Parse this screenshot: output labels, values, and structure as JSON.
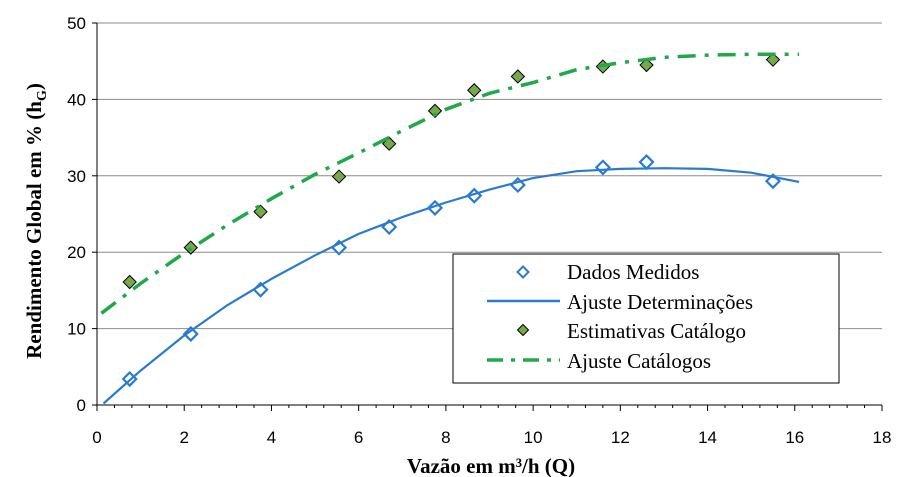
{
  "chart_data": {
    "type": "scatter",
    "xlabel": "Vazão em m³/h (Q)",
    "ylabel_main": "Rendimento Global em % (h",
    "ylabel_sub": "G",
    "ylabel_close": ")",
    "xlim": [
      0,
      18
    ],
    "ylim": [
      0,
      50
    ],
    "x_ticks": [
      0,
      2,
      4,
      6,
      8,
      10,
      12,
      14,
      16,
      18
    ],
    "y_ticks": [
      0,
      10,
      20,
      30,
      40,
      50
    ],
    "grid": "horizontal",
    "legend_position": "bottom-right",
    "series": [
      {
        "name": "Dados Medidos",
        "kind": "markers",
        "marker": "diamond-open",
        "color": "#2a7bd0",
        "x": [
          0.75,
          2.15,
          3.75,
          5.55,
          6.7,
          7.75,
          8.65,
          9.65,
          11.6,
          12.6,
          15.5
        ],
        "y": [
          3.4,
          9.3,
          15.1,
          20.6,
          23.3,
          25.8,
          27.4,
          28.8,
          31.1,
          31.8,
          29.3
        ]
      },
      {
        "name": "Ajuste Determinações",
        "kind": "line",
        "style": "solid",
        "color": "#2a7bd0",
        "x": [
          0.15,
          1,
          2,
          3,
          4,
          5,
          6,
          7,
          8,
          9,
          10,
          11,
          12,
          13,
          14,
          15,
          16.1
        ],
        "y": [
          0.2,
          4.5,
          9.1,
          13.1,
          16.5,
          19.6,
          22.4,
          24.6,
          26.5,
          28.2,
          29.7,
          30.6,
          30.9,
          31.0,
          30.9,
          30.4,
          29.2
        ]
      },
      {
        "name": "Estimativas Catálogo",
        "kind": "markers",
        "marker": "diamond-filled",
        "color": "#77a94a",
        "x": [
          0.75,
          2.15,
          3.75,
          5.55,
          6.7,
          7.75,
          8.65,
          9.65,
          11.6,
          12.6,
          15.5
        ],
        "y": [
          16.1,
          20.6,
          25.3,
          29.9,
          34.2,
          38.5,
          41.2,
          43.0,
          44.3,
          44.5,
          45.2
        ]
      },
      {
        "name": "Ajuste Catálogos",
        "kind": "line",
        "style": "dash-dot",
        "color": "#22a84a",
        "x": [
          0.1,
          1,
          2,
          3,
          4,
          5,
          6,
          7,
          8,
          9,
          10,
          11,
          12,
          13,
          14,
          15,
          16.1
        ],
        "y": [
          12,
          15.9,
          19.9,
          23.6,
          27.0,
          30.2,
          33.0,
          35.9,
          38.7,
          40.8,
          42.2,
          43.9,
          44.8,
          45.5,
          45.8,
          45.9,
          45.9
        ]
      }
    ]
  }
}
